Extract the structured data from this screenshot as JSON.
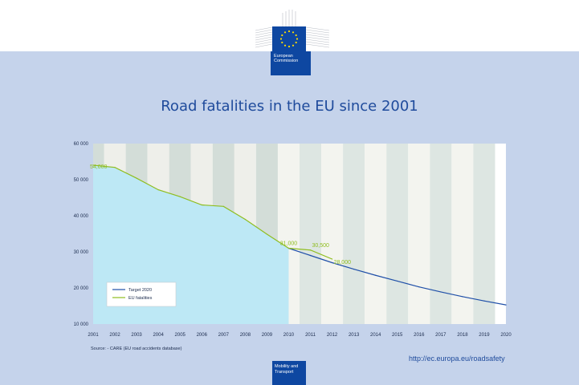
{
  "header": {
    "org_line1": "European",
    "org_line2": "Commission"
  },
  "chart_data": {
    "type": "line",
    "title": "Road fatalities in the EU since 2001",
    "xlabel": "",
    "ylabel": "",
    "x": [
      2001,
      2002,
      2003,
      2004,
      2005,
      2006,
      2007,
      2008,
      2009,
      2010,
      2011,
      2012,
      2013,
      2014,
      2015,
      2016,
      2017,
      2018,
      2019,
      2020
    ],
    "ylim": [
      10000,
      60000
    ],
    "yticks": [
      "10 000",
      "20 000",
      "30 000",
      "40 000",
      "50 000",
      "60 000"
    ],
    "series": [
      {
        "name": "Target 2020",
        "color": "#1f4fa8",
        "x": [
          2010,
          2011,
          2012,
          2013,
          2014,
          2015,
          2016,
          2017,
          2018,
          2019,
          2020
        ],
        "values": [
          31000,
          29000,
          27000,
          25200,
          23500,
          21900,
          20300,
          18900,
          17600,
          16400,
          15300
        ]
      },
      {
        "name": "EU fatalities",
        "color": "#8fbd1f",
        "x": [
          2001,
          2002,
          2003,
          2004,
          2005,
          2006,
          2007,
          2008,
          2009,
          2010,
          2011,
          2012
        ],
        "values": [
          54000,
          53400,
          50400,
          47200,
          45300,
          43000,
          42600,
          39000,
          34900,
          31000,
          30500,
          28000
        ]
      }
    ],
    "annotations": [
      {
        "x": 2001,
        "y": 54000,
        "text": "54,000"
      },
      {
        "x": 2010,
        "y": 31000,
        "text": "31,000"
      },
      {
        "x": 2011,
        "y": 30500,
        "text": "30,500"
      },
      {
        "x": 2012,
        "y": 28000,
        "text": "28,000"
      }
    ],
    "legend": "bottom-left",
    "source": "Source: - CARE (EU road accidents database)"
  },
  "footer": {
    "url": "http://ec.europa.eu/roadsafety",
    "dg_line1": "Mobility and",
    "dg_line2": "Transport"
  },
  "colors": {
    "background": "#c5d3eb",
    "area_fill": "#bde8f5",
    "brand_blue": "#0e47a1",
    "title_blue": "#1f4b9c"
  }
}
